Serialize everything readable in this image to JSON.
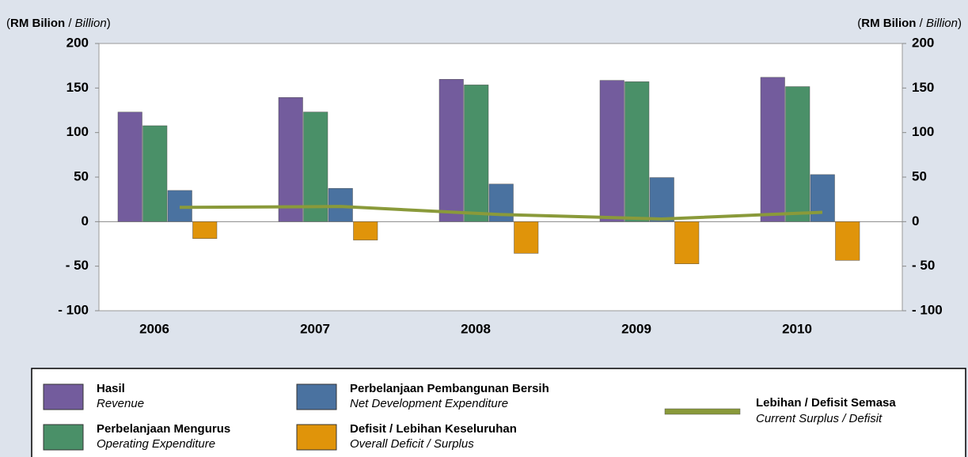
{
  "chart_data": {
    "type": "bar",
    "ylabel_parts": [
      "(",
      "RM Bilion",
      " / ",
      "Billion",
      ")"
    ],
    "y2label_parts": [
      "(",
      "RM Bilion",
      " / ",
      "Billion",
      ")"
    ],
    "categories": [
      "2006",
      "2007",
      "2008",
      "2009",
      "2010"
    ],
    "series": [
      {
        "name": "Hasil",
        "name_en": "Revenue",
        "color": "#735c9d",
        "type": "bar",
        "values": [
          123,
          139.4,
          159.8,
          158.6,
          162
        ]
      },
      {
        "name": "Perbelanjaan Mengurus",
        "name_en": "Operating Expenditure",
        "color": "#4a9068",
        "type": "bar",
        "values": [
          107.7,
          123.1,
          153.5,
          157.1,
          151.6
        ]
      },
      {
        "name": "Perbelanjaan Pembangunan Bersih",
        "name_en": "Net Development Expenditure",
        "color": "#4a72a0",
        "type": "bar",
        "values": [
          35,
          37.4,
          42.2,
          49.5,
          52.8
        ]
      },
      {
        "name": "Defisit / Lebihan Keseluruhan",
        "name_en": "Overall Deficit / Surplus",
        "color": "#e0940a",
        "type": "bar",
        "values": [
          -19,
          -20.7,
          -35.6,
          -47.4,
          -43.5
        ]
      },
      {
        "name": "Lebihan / Defisit Semasa",
        "name_en": "Current Surplus / Defisit",
        "color": "#8a9a3a",
        "type": "line",
        "values": [
          16,
          17,
          8,
          3,
          10.5
        ]
      }
    ],
    "ylim": [
      -100,
      200
    ],
    "yticks": [
      {
        "value": -100,
        "label": "- 100"
      },
      {
        "value": -50,
        "label": "- 50"
      },
      0,
      50,
      100,
      150,
      200
    ],
    "y2lim": [
      -100,
      200
    ],
    "y2ticks": [
      {
        "value": -100,
        "label": "- 100"
      },
      {
        "value": -50,
        "label": "- 50"
      },
      0,
      50,
      100,
      150,
      200
    ]
  }
}
